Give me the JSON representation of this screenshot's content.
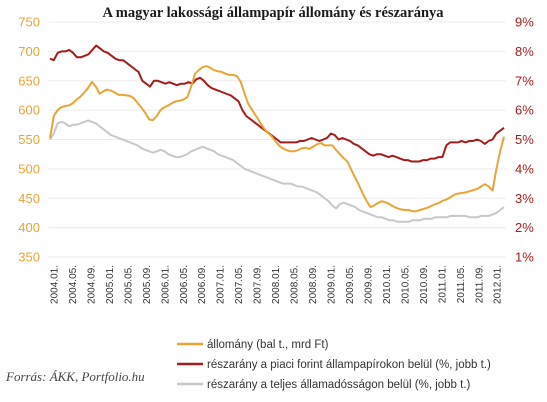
{
  "chart_data": {
    "type": "line",
    "title": "A magyar lakossági állampapír állomány és részaránya",
    "source": "Forrás: ÁKK, Portfolio.hu",
    "left_axis": {
      "min": 350,
      "max": 750,
      "ticks": [
        "750",
        "700",
        "650",
        "600",
        "550",
        "500",
        "450",
        "400",
        "350"
      ]
    },
    "right_axis": {
      "min": 1,
      "max": 9,
      "ticks": [
        "9%",
        "8%",
        "7%",
        "6%",
        "5%",
        "4%",
        "3%",
        "2%",
        "1%"
      ]
    },
    "colors": {
      "left_axis": "#e8a535",
      "right_axis": "#a51c1c"
    },
    "x_ticks": [
      "2004.01.",
      "2004.05.",
      "2004.09.",
      "2005.01.",
      "2005.05.",
      "2005.09.",
      "2006.01.",
      "2006.05.",
      "2006.09.",
      "2007.01.",
      "2007.05.",
      "2007.09.",
      "2008.01.",
      "2008.05.",
      "2008.09.",
      "2009.01.",
      "2009.05.",
      "2009.09.",
      "2010.01.",
      "2010.05.",
      "2010.09.",
      "2011.01.",
      "2011.05.",
      "2011.09.",
      "2012.01."
    ],
    "x_start": "2004.01.",
    "x_end": "2012.05.",
    "series": [
      {
        "name": "állomány (bal t., mrd Ft)",
        "axis": "left",
        "color": "#e8a535",
        "values": [
          552,
          590,
          600,
          605,
          607,
          608,
          612,
          618,
          623,
          630,
          638,
          648,
          640,
          628,
          632,
          635,
          633,
          630,
          626,
          626,
          625,
          624,
          620,
          612,
          604,
          595,
          584,
          583,
          590,
          600,
          605,
          608,
          612,
          615,
          616,
          618,
          622,
          640,
          662,
          668,
          673,
          675,
          672,
          668,
          666,
          665,
          662,
          660,
          660,
          658,
          648,
          628,
          610,
          600,
          590,
          580,
          570,
          562,
          556,
          548,
          540,
          535,
          532,
          530,
          530,
          532,
          535,
          536,
          534,
          538,
          542,
          544,
          540,
          540,
          540,
          532,
          525,
          518,
          512,
          498,
          485,
          472,
          458,
          445,
          435,
          438,
          442,
          445,
          443,
          440,
          436,
          433,
          431,
          430,
          430,
          428,
          428,
          430,
          432,
          434,
          437,
          440,
          442,
          446,
          448,
          452,
          456,
          458,
          459,
          460,
          462,
          464,
          466,
          470,
          474,
          470,
          463,
          500,
          530,
          555
        ]
      },
      {
        "name": "részarány a piaci forint állampapírokon belül (%, jobb t.)",
        "axis": "right",
        "color": "#a51c1c",
        "values": [
          7.75,
          7.7,
          7.95,
          8.0,
          8.0,
          8.05,
          7.95,
          7.8,
          7.8,
          7.85,
          7.9,
          8.05,
          8.2,
          8.1,
          8.0,
          7.95,
          7.85,
          7.75,
          7.7,
          7.7,
          7.6,
          7.5,
          7.4,
          7.3,
          7.0,
          6.9,
          6.8,
          7.0,
          7.0,
          6.95,
          6.9,
          6.95,
          6.9,
          6.85,
          6.9,
          6.9,
          6.95,
          6.9,
          7.05,
          7.1,
          7.0,
          6.85,
          6.75,
          6.7,
          6.65,
          6.6,
          6.55,
          6.5,
          6.4,
          6.3,
          6.0,
          5.8,
          5.7,
          5.6,
          5.5,
          5.4,
          5.3,
          5.2,
          5.1,
          5.0,
          4.9,
          4.9,
          4.9,
          4.9,
          4.9,
          4.95,
          4.95,
          5.0,
          5.05,
          5.0,
          4.95,
          5.0,
          5.05,
          5.2,
          5.15,
          5.0,
          5.05,
          5.0,
          4.95,
          4.85,
          4.8,
          4.7,
          4.6,
          4.5,
          4.45,
          4.5,
          4.5,
          4.45,
          4.4,
          4.45,
          4.4,
          4.35,
          4.3,
          4.3,
          4.25,
          4.25,
          4.25,
          4.3,
          4.3,
          4.35,
          4.35,
          4.4,
          4.4,
          4.8,
          4.9,
          4.9,
          4.9,
          4.95,
          4.9,
          4.95,
          4.95,
          5.0,
          4.95,
          4.85,
          4.95,
          5.0,
          5.2,
          5.3,
          5.4
        ]
      },
      {
        "name": "részarány a teljes államadósságon belül (%, jobb t.)",
        "axis": "right",
        "color": "#c8c8c8",
        "values": [
          5.0,
          5.2,
          5.55,
          5.6,
          5.55,
          5.45,
          5.5,
          5.5,
          5.55,
          5.6,
          5.65,
          5.6,
          5.55,
          5.45,
          5.35,
          5.25,
          5.15,
          5.1,
          5.05,
          5.0,
          4.95,
          4.9,
          4.85,
          4.8,
          4.7,
          4.65,
          4.6,
          4.55,
          4.6,
          4.65,
          4.6,
          4.5,
          4.45,
          4.4,
          4.4,
          4.45,
          4.5,
          4.6,
          4.65,
          4.7,
          4.75,
          4.7,
          4.65,
          4.6,
          4.5,
          4.45,
          4.4,
          4.35,
          4.3,
          4.2,
          4.1,
          4.0,
          3.95,
          3.9,
          3.85,
          3.8,
          3.75,
          3.7,
          3.65,
          3.6,
          3.55,
          3.5,
          3.5,
          3.5,
          3.45,
          3.4,
          3.4,
          3.35,
          3.3,
          3.25,
          3.2,
          3.1,
          3.0,
          2.9,
          2.75,
          2.65,
          2.8,
          2.85,
          2.8,
          2.75,
          2.7,
          2.6,
          2.55,
          2.5,
          2.45,
          2.4,
          2.35,
          2.35,
          2.3,
          2.25,
          2.25,
          2.2,
          2.2,
          2.2,
          2.2,
          2.25,
          2.25,
          2.25,
          2.3,
          2.3,
          2.3,
          2.35,
          2.35,
          2.35,
          2.35,
          2.4,
          2.4,
          2.4,
          2.4,
          2.4,
          2.35,
          2.35,
          2.35,
          2.4,
          2.4,
          2.4,
          2.45,
          2.5,
          2.6,
          2.7
        ]
      }
    ]
  }
}
